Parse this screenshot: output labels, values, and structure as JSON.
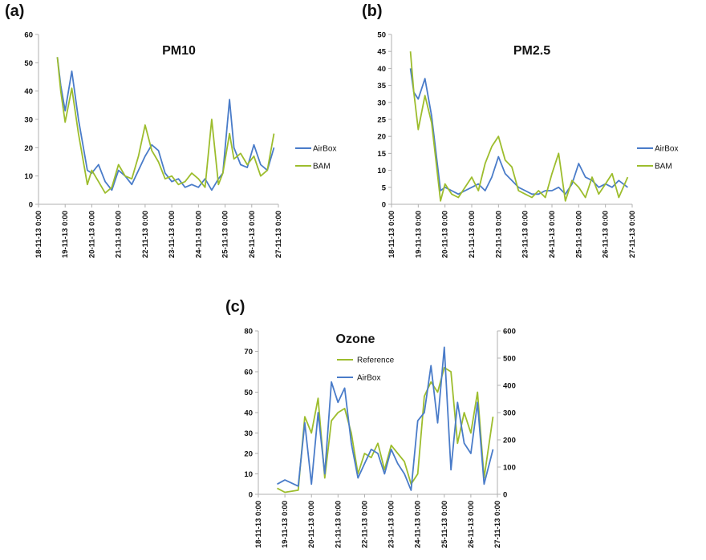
{
  "colors": {
    "airbox": "#4a7cc9",
    "bam": "#9dbd2d",
    "axis": "#b0b0b0",
    "grid": "#e0e0e0"
  },
  "panels": {
    "a": {
      "label": "(a)"
    },
    "b": {
      "label": "(b)"
    },
    "c": {
      "label": "(c)"
    }
  },
  "chart_data": [
    {
      "id": "a",
      "type": "line",
      "title": "PM10",
      "xlabel": "",
      "ylabel": "",
      "x_tick_labels": [
        "18-11-13 0:00",
        "19-11-13 0:00",
        "20-11-13 0:00",
        "21-11-13 0:00",
        "22-11-13 0:00",
        "23-11-13 0:00",
        "24-11-13 0:00",
        "25-11-13 0:00",
        "26-11-13 0:00",
        "27-11-13 0:00"
      ],
      "x_range": [
        "2013-11-18 00:00",
        "2013-11-27 00:00"
      ],
      "ylim": [
        0,
        60
      ],
      "y_ticks": [
        0,
        10,
        20,
        30,
        40,
        50,
        60
      ],
      "grid": false,
      "legend": "right",
      "series": [
        {
          "name": "AirBox",
          "color": "#4a7cc9",
          "x": [
            "2013-11-18 17:00",
            "2013-11-18 20:00",
            "2013-11-19 00:00",
            "2013-11-19 06:00",
            "2013-11-19 12:00",
            "2013-11-19 20:00",
            "2013-11-20 00:00",
            "2013-11-20 06:00",
            "2013-11-20 12:00",
            "2013-11-20 18:00",
            "2013-11-21 00:00",
            "2013-11-21 06:00",
            "2013-11-21 12:00",
            "2013-11-21 18:00",
            "2013-11-22 00:00",
            "2013-11-22 06:00",
            "2013-11-22 12:00",
            "2013-11-22 18:00",
            "2013-11-23 00:00",
            "2013-11-23 06:00",
            "2013-11-23 12:00",
            "2013-11-23 18:00",
            "2013-11-24 00:00",
            "2013-11-24 06:00",
            "2013-11-24 12:00",
            "2013-11-24 18:00",
            "2013-11-24 22:00",
            "2013-11-25 04:00",
            "2013-11-25 08:00",
            "2013-11-25 14:00",
            "2013-11-25 20:00",
            "2013-11-26 02:00",
            "2013-11-26 08:00",
            "2013-11-26 14:00",
            "2013-11-26 20:00"
          ],
          "values": [
            52,
            42,
            33,
            47,
            30,
            12,
            11,
            14,
            8,
            5,
            12,
            10,
            7,
            12,
            17,
            21,
            19,
            11,
            8,
            9,
            6,
            7,
            6,
            9,
            5,
            9,
            11,
            37,
            20,
            14,
            13,
            21,
            14,
            12,
            20
          ]
        },
        {
          "name": "BAM",
          "color": "#9dbd2d",
          "x": [
            "2013-11-18 17:00",
            "2013-11-18 20:00",
            "2013-11-19 00:00",
            "2013-11-19 06:00",
            "2013-11-19 12:00",
            "2013-11-19 20:00",
            "2013-11-20 00:00",
            "2013-11-20 06:00",
            "2013-11-20 12:00",
            "2013-11-20 18:00",
            "2013-11-21 00:00",
            "2013-11-21 06:00",
            "2013-11-21 12:00",
            "2013-11-21 18:00",
            "2013-11-22 00:00",
            "2013-11-22 06:00",
            "2013-11-22 12:00",
            "2013-11-22 18:00",
            "2013-11-23 00:00",
            "2013-11-23 06:00",
            "2013-11-23 12:00",
            "2013-11-23 18:00",
            "2013-11-24 00:00",
            "2013-11-24 06:00",
            "2013-11-24 12:00",
            "2013-11-24 18:00",
            "2013-11-24 22:00",
            "2013-11-25 04:00",
            "2013-11-25 08:00",
            "2013-11-25 14:00",
            "2013-11-25 20:00",
            "2013-11-26 02:00",
            "2013-11-26 08:00",
            "2013-11-26 14:00",
            "2013-11-26 20:00"
          ],
          "values": [
            52,
            40,
            29,
            41,
            25,
            7,
            12,
            8,
            4,
            6,
            14,
            10,
            9,
            17,
            28,
            19,
            15,
            9,
            10,
            7,
            8,
            11,
            9,
            6,
            30,
            7,
            11,
            25,
            16,
            18,
            14,
            17,
            10,
            12,
            25
          ]
        }
      ]
    },
    {
      "id": "b",
      "type": "line",
      "title": "PM2.5",
      "xlabel": "",
      "ylabel": "",
      "x_tick_labels": [
        "18-11-13 0:00",
        "19-11-13 0:00",
        "20-11-13 0:00",
        "21-11-13 0:00",
        "22-11-13 0:00",
        "23-11-13 0:00",
        "24-11-13 0:00",
        "25-11-13 0:00",
        "26-11-13 0:00",
        "27-11-13 0:00"
      ],
      "x_range": [
        "2013-11-18 00:00",
        "2013-11-27 00:00"
      ],
      "ylim": [
        0,
        50
      ],
      "y_ticks": [
        0,
        5,
        10,
        15,
        20,
        25,
        30,
        35,
        40,
        45,
        50
      ],
      "grid": false,
      "legend": "right",
      "series": [
        {
          "name": "AirBox",
          "color": "#4a7cc9",
          "x": [
            "2013-11-18 17:00",
            "2013-11-18 20:00",
            "2013-11-19 00:00",
            "2013-11-19 06:00",
            "2013-11-19 12:00",
            "2013-11-19 20:00",
            "2013-11-20 00:00",
            "2013-11-20 06:00",
            "2013-11-20 12:00",
            "2013-11-20 18:00",
            "2013-11-21 00:00",
            "2013-11-21 06:00",
            "2013-11-21 12:00",
            "2013-11-21 18:00",
            "2013-11-22 00:00",
            "2013-11-22 06:00",
            "2013-11-22 12:00",
            "2013-11-22 18:00",
            "2013-11-23 00:00",
            "2013-11-23 06:00",
            "2013-11-23 12:00",
            "2013-11-23 18:00",
            "2013-11-24 00:00",
            "2013-11-24 06:00",
            "2013-11-24 12:00",
            "2013-11-24 18:00",
            "2013-11-25 00:00",
            "2013-11-25 06:00",
            "2013-11-25 12:00",
            "2013-11-25 18:00",
            "2013-11-26 00:00",
            "2013-11-26 06:00",
            "2013-11-26 12:00",
            "2013-11-26 20:00"
          ],
          "values": [
            40,
            33,
            31,
            37,
            26,
            4,
            5,
            4,
            3,
            4,
            5,
            6,
            4,
            8,
            14,
            9,
            7,
            5,
            4,
            3,
            3,
            4,
            4,
            5,
            3,
            6,
            12,
            8,
            7,
            5,
            6,
            5,
            7,
            5
          ]
        },
        {
          "name": "BAM",
          "color": "#9dbd2d",
          "x": [
            "2013-11-18 17:00",
            "2013-11-18 20:00",
            "2013-11-19 00:00",
            "2013-11-19 06:00",
            "2013-11-19 12:00",
            "2013-11-19 20:00",
            "2013-11-20 00:00",
            "2013-11-20 06:00",
            "2013-11-20 12:00",
            "2013-11-20 18:00",
            "2013-11-21 00:00",
            "2013-11-21 06:00",
            "2013-11-21 12:00",
            "2013-11-21 18:00",
            "2013-11-22 00:00",
            "2013-11-22 06:00",
            "2013-11-22 12:00",
            "2013-11-22 18:00",
            "2013-11-23 00:00",
            "2013-11-23 06:00",
            "2013-11-23 12:00",
            "2013-11-23 18:00",
            "2013-11-24 00:00",
            "2013-11-24 06:00",
            "2013-11-24 12:00",
            "2013-11-24 18:00",
            "2013-11-25 00:00",
            "2013-11-25 06:00",
            "2013-11-25 12:00",
            "2013-11-25 18:00",
            "2013-11-26 00:00",
            "2013-11-26 06:00",
            "2013-11-26 12:00",
            "2013-11-26 20:00"
          ],
          "values": [
            45,
            33,
            22,
            32,
            24,
            1,
            6,
            3,
            2,
            5,
            8,
            4,
            12,
            17,
            20,
            13,
            11,
            4,
            3,
            2,
            4,
            2,
            9,
            15,
            1,
            7,
            5,
            2,
            8,
            3,
            6,
            9,
            2,
            8
          ]
        }
      ]
    },
    {
      "id": "c",
      "type": "line",
      "title": "Ozone",
      "xlabel": "",
      "ylabel": "",
      "x_tick_labels": [
        "18-11-13 0:00",
        "19-11-13 0:00",
        "20-11-13 0:00",
        "21-11-13 0:00",
        "22-11-13 0:00",
        "23-11-13 0:00",
        "24-11-13 0:00",
        "25-11-13 0:00",
        "26-11-13 0:00",
        "27-11-13 0:00"
      ],
      "x_range": [
        "2013-11-18 00:00",
        "2013-11-27 00:00"
      ],
      "ylim": [
        0,
        80
      ],
      "y_ticks": [
        0,
        10,
        20,
        30,
        40,
        50,
        60,
        70,
        80
      ],
      "y2lim": [
        0,
        600
      ],
      "y2_ticks": [
        0,
        100,
        200,
        300,
        400,
        500,
        600
      ],
      "grid": false,
      "legend": "top",
      "series": [
        {
          "name": "Reference",
          "color": "#9dbd2d",
          "x": [
            "2013-11-18 17:00",
            "2013-11-19 00:00",
            "2013-11-19 12:00",
            "2013-11-19 18:00",
            "2013-11-20 00:00",
            "2013-11-20 06:00",
            "2013-11-20 12:00",
            "2013-11-20 18:00",
            "2013-11-21 00:00",
            "2013-11-21 06:00",
            "2013-11-21 12:00",
            "2013-11-21 18:00",
            "2013-11-22 00:00",
            "2013-11-22 06:00",
            "2013-11-22 12:00",
            "2013-11-22 18:00",
            "2013-11-23 00:00",
            "2013-11-23 06:00",
            "2013-11-23 12:00",
            "2013-11-23 18:00",
            "2013-11-24 00:00",
            "2013-11-24 06:00",
            "2013-11-24 12:00",
            "2013-11-24 18:00",
            "2013-11-25 00:00",
            "2013-11-25 06:00",
            "2013-11-25 12:00",
            "2013-11-25 18:00",
            "2013-11-26 00:00",
            "2013-11-26 06:00",
            "2013-11-26 12:00",
            "2013-11-26 20:00"
          ],
          "values": [
            3,
            1,
            2,
            38,
            30,
            47,
            8,
            36,
            40,
            42,
            30,
            10,
            20,
            18,
            25,
            12,
            24,
            20,
            16,
            5,
            10,
            48,
            55,
            50,
            62,
            60,
            25,
            40,
            30,
            50,
            8,
            38
          ]
        },
        {
          "name": "AirBox",
          "color": "#4a7cc9",
          "x": [
            "2013-11-18 17:00",
            "2013-11-19 00:00",
            "2013-11-19 12:00",
            "2013-11-19 18:00",
            "2013-11-20 00:00",
            "2013-11-20 06:00",
            "2013-11-20 12:00",
            "2013-11-20 18:00",
            "2013-11-21 00:00",
            "2013-11-21 06:00",
            "2013-11-21 12:00",
            "2013-11-21 18:00",
            "2013-11-22 00:00",
            "2013-11-22 06:00",
            "2013-11-22 12:00",
            "2013-11-22 18:00",
            "2013-11-23 00:00",
            "2013-11-23 06:00",
            "2013-11-23 12:00",
            "2013-11-23 18:00",
            "2013-11-24 00:00",
            "2013-11-24 06:00",
            "2013-11-24 12:00",
            "2013-11-24 18:00",
            "2013-11-25 00:00",
            "2013-11-25 06:00",
            "2013-11-25 12:00",
            "2013-11-25 18:00",
            "2013-11-26 00:00",
            "2013-11-26 06:00",
            "2013-11-26 12:00",
            "2013-11-26 20:00"
          ],
          "values": [
            5,
            7,
            4,
            35,
            5,
            40,
            10,
            55,
            45,
            52,
            25,
            8,
            15,
            22,
            20,
            10,
            22,
            15,
            10,
            2,
            36,
            40,
            63,
            35,
            72,
            12,
            45,
            25,
            20,
            45,
            5,
            22
          ]
        }
      ]
    }
  ]
}
